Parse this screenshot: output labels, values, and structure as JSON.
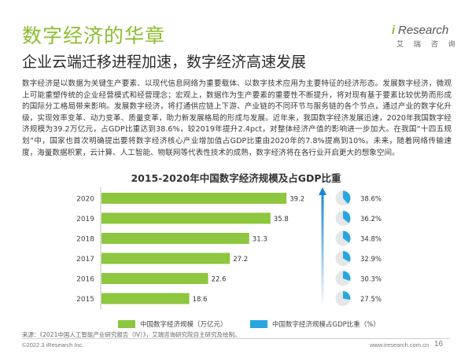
{
  "header": {
    "title": "数字经济的华章",
    "subtitle": "企业云端迁移进程加速，数字经济高速发展"
  },
  "logo": {
    "brand_i": "i",
    "brand_rest": "Research",
    "brand_cn": "艾 瑞 咨 询"
  },
  "body_text": "数字经济是以数据为关键生产要素、以现代信息网络为重要载体、以数字技术应用为主要特征的经济形态。发展数字经济，微观上可能重塑传统的企业经营模式和经营理念；宏观上，数据作为生产要素的重要性不断提升，将对现有基于要素比较优势而形成的国际分工格局带来影响。发展数字经济，将打通供应链上下游、产业链的不同环节与服务链的各个节点，通过产业的数字化升级，实现效率变革、动力变革、质量变革，助力新发展格局的形成与发展。近年来，我国数字经济发展迅速，2020年我国数字经济规模为39.2万亿元，占GDP比重达到38.6%，较2019年提升2.4pct，对整体经济产值的影响进一步加大。在我国“十四五规划”中，国家也首次明确提出要将数字经济核心产业增加值占GDP比重由2020年的7.8%提高到10%。未来，随着网络传输速度，海量数据积累，云计算、人工智能、物联网等代表性技术的成熟，数字经济将在各行业开启更大的想象空间。",
  "chart_data": {
    "type": "bar",
    "title": "2015-2020年中国数字经济规模及占GDP比重",
    "orientation": "horizontal",
    "categories": [
      "2020",
      "2019",
      "2018",
      "2017",
      "2016",
      "2015"
    ],
    "series": [
      {
        "name": "中国数字经济规模（万亿元）",
        "values": [
          39.2,
          35.8,
          31.3,
          27.2,
          22.6,
          18.6
        ],
        "labels": [
          "39.2",
          "35.8",
          "31.3",
          "27.2",
          "22.6",
          "18.6"
        ]
      },
      {
        "name": "中国数字经济规模占GDP比重（%）",
        "values": [
          38.6,
          36.2,
          34.8,
          32.9,
          30.3,
          27.5
        ],
        "labels": [
          "38.6%",
          "36.2%",
          "34.8%",
          "32.9%",
          "30.3%",
          "27.5%"
        ]
      }
    ],
    "xlim": [
      0,
      40
    ],
    "grid": false,
    "legend_position": "bottom"
  },
  "colors": {
    "accent": "#8bbd2f",
    "bar": "#8dc63f",
    "pie_fill": "#29a6e0",
    "pie_bg": "#e4e6e8",
    "arrow": "#1b86d6"
  },
  "legend": {
    "bar_label": "中国数字经济规模（万亿元）",
    "pie_label": "中国数字经济规模占GDP比重（%）"
  },
  "footer": {
    "source": "来源：《2021中国人工智能产业研究报告（IV）》，艾瑞咨询研究院自主研究及绘制。",
    "copyright": "©2022.3 iResearch Inc.",
    "site": "www.iresearch.com.cn",
    "page": "16"
  }
}
